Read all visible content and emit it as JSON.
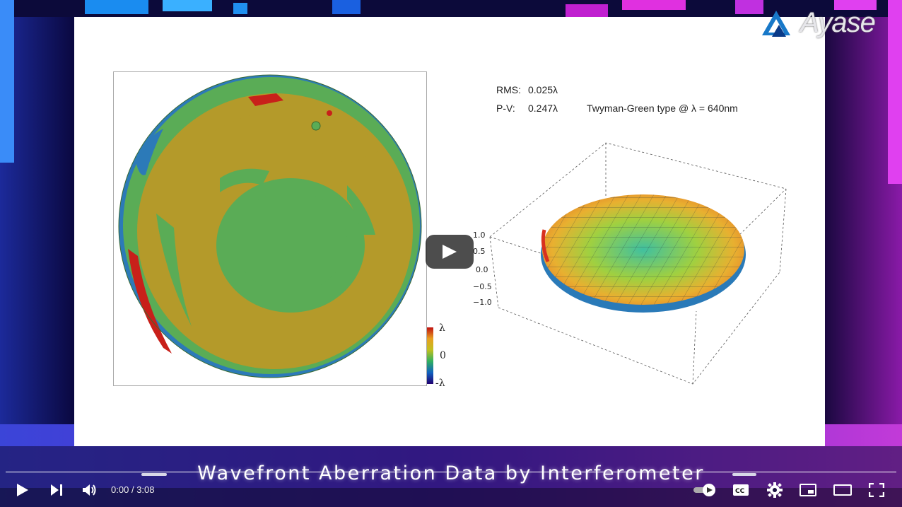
{
  "video": {
    "caption": "Wavefront Aberration Data by Interferometer",
    "time_current": "0:00",
    "time_separator": "/",
    "time_total": "3:08",
    "progress": 0
  },
  "logo": {
    "text": "Ayase"
  },
  "slide": {
    "rms_label": "RMS:",
    "rms_value": "0.025λ",
    "pv_label": "P-V:",
    "pv_value": "0.247λ",
    "note": "Twyman-Green type @ λ = 640nm",
    "colorbar_top": "λ",
    "colorbar_mid": "0",
    "colorbar_bottom": "-λ",
    "z_ticks": [
      "1.0",
      "0.5",
      "0.0",
      "−0.5",
      "−1.0"
    ]
  },
  "controls": {
    "icons": [
      "play-icon",
      "next-icon",
      "volume-icon",
      "autoplay-toggle-icon",
      "captions-icon",
      "settings-icon",
      "miniplayer-icon",
      "theater-icon",
      "fullscreen-icon"
    ]
  },
  "colors": {
    "accent": "#ff0000",
    "map_green": "#5aac56",
    "map_olive": "#b49a2a",
    "map_red": "#c8201a",
    "map_blue": "#2a6ab0"
  }
}
